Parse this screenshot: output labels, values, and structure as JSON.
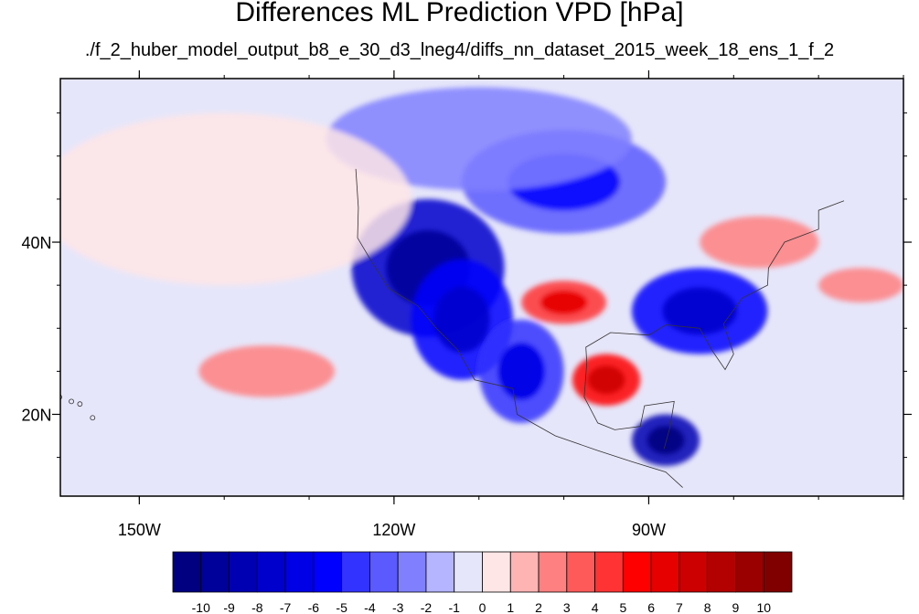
{
  "chart_data": {
    "type": "heatmap",
    "title": "Differences ML Prediction VPD [hPa]",
    "subtitle": "./f_2_huber_model_output_b8_e_30_d3_lneg4/diffs_nn_dataset_2015_week_18_ens_1_f_2",
    "xlabel": "",
    "ylabel": "",
    "x_range_lon": [
      -159.3,
      -60
    ],
    "y_range_lat": [
      10.5,
      59
    ],
    "x_ticks": [
      {
        "value": -150,
        "label": "150W"
      },
      {
        "value": -120,
        "label": "120W"
      },
      {
        "value": -90,
        "label": "90W"
      }
    ],
    "y_ticks": [
      {
        "value": 40,
        "label": "40N"
      },
      {
        "value": 20,
        "label": "20N"
      }
    ],
    "colorbar": {
      "levels": [
        "-10",
        "-9",
        "-8",
        "-7",
        "-6",
        "-5",
        "-4",
        "-3",
        "-2",
        "-1",
        "0",
        "1",
        "2",
        "3",
        "4",
        "5",
        "6",
        "7",
        "8",
        "9",
        "10"
      ],
      "colors": [
        "#000080",
        "#00009a",
        "#0000b3",
        "#0000cc",
        "#0000e6",
        "#0000ff",
        "#3333ff",
        "#5a5aff",
        "#8080ff",
        "#b4b4ff",
        "#e6e6fa",
        "#ffe6e6",
        "#ffb4b4",
        "#ff8080",
        "#ff5a5a",
        "#ff3333",
        "#ff0000",
        "#e60000",
        "#cc0000",
        "#b30000",
        "#9a0000",
        "#800000"
      ]
    },
    "field_regions": [
      {
        "lon": -116,
        "lat": 37,
        "value": -8
      },
      {
        "lon": -112,
        "lat": 31,
        "value": -6
      },
      {
        "lon": -105,
        "lat": 25,
        "value": -5
      },
      {
        "lon": -88,
        "lat": 17,
        "value": -9
      },
      {
        "lon": -84,
        "lat": 32,
        "value": -6
      },
      {
        "lon": -100,
        "lat": 47,
        "value": -4
      },
      {
        "lon": -110,
        "lat": 52,
        "value": -3
      },
      {
        "lon": -95,
        "lat": 24,
        "value": 5
      },
      {
        "lon": -100,
        "lat": 33,
        "value": 4
      },
      {
        "lon": -77,
        "lat": 40,
        "value": 2
      },
      {
        "lon": -65,
        "lat": 35,
        "value": 2
      },
      {
        "lon": -135,
        "lat": 25,
        "value": 2
      },
      {
        "lon": -140,
        "lat": 45,
        "value": 0.5
      }
    ]
  }
}
